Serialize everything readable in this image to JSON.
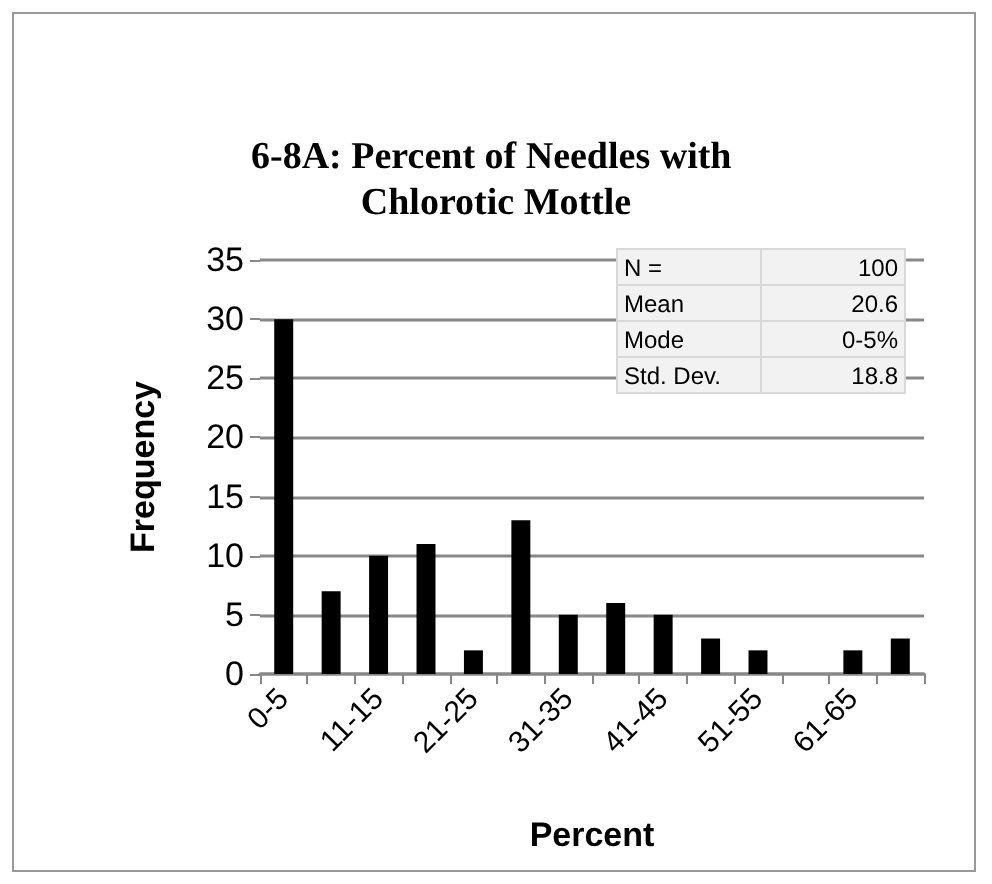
{
  "chart_data": {
    "type": "bar",
    "title": "6-8A: Percent of Needles with Chlorotic Mottle",
    "xlabel": "Percent",
    "ylabel": "Frequency",
    "categories": [
      "0-5",
      null,
      "11-15",
      null,
      "21-25",
      null,
      "31-35",
      null,
      "41-45",
      null,
      "51-55",
      null,
      "61-65",
      null
    ],
    "values": [
      30,
      7,
      10,
      11,
      2,
      13,
      5,
      6,
      5,
      3,
      2,
      0,
      2,
      3
    ],
    "color": "#000000",
    "ylim": [
      0,
      35
    ],
    "yticks": [
      0,
      5,
      10,
      15,
      20,
      25,
      30,
      35
    ],
    "grid": "y",
    "annotations": [
      "N =",
      "100",
      "Mean",
      "20.6",
      "Mode",
      "0-5%",
      "Std. Dev.",
      "18.8"
    ]
  }
}
